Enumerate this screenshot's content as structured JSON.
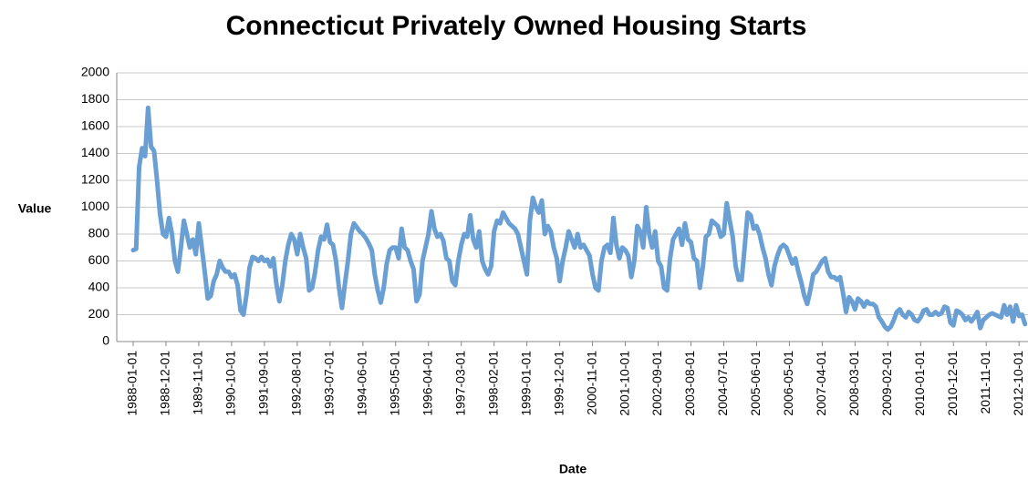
{
  "chart_data": {
    "type": "line",
    "title": "Connecticut Privately Owned Housing Starts",
    "x_label": "Date",
    "y_label": "Value",
    "color": "#6a9fd4",
    "grid": true,
    "ylim": [
      0,
      2000
    ],
    "yticks": [
      0,
      200,
      400,
      600,
      800,
      1000,
      1200,
      1400,
      1600,
      1800,
      2000
    ],
    "xticks": [
      "1988-01-01",
      "1988-12-01",
      "1989-11-01",
      "1990-10-01",
      "1991-09-01",
      "1992-08-01",
      "1993-07-01",
      "1994-06-01",
      "1995-05-01",
      "1996-04-01",
      "1997-03-01",
      "1998-02-01",
      "1999-01-01",
      "1999-12-01",
      "2000-11-01",
      "2001-10-01",
      "2002-09-01",
      "2003-08-01",
      "2004-07-01",
      "2005-06-01",
      "2006-05-01",
      "2007-04-01",
      "2008-03-01",
      "2009-02-01",
      "2010-01-01",
      "2010-12-01",
      "2011-11-01",
      "2012-10-01"
    ],
    "x": [
      "1988-01-01",
      "1988-02-01",
      "1988-03-01",
      "1988-04-01",
      "1988-05-01",
      "1988-06-01",
      "1988-07-01",
      "1988-08-01",
      "1988-09-01",
      "1988-10-01",
      "1988-11-01",
      "1988-12-01",
      "1989-01-01",
      "1989-02-01",
      "1989-03-01",
      "1989-04-01",
      "1989-05-01",
      "1989-06-01",
      "1989-07-01",
      "1989-08-01",
      "1989-09-01",
      "1989-10-01",
      "1989-11-01",
      "1989-12-01",
      "1990-01-01",
      "1990-02-01",
      "1990-03-01",
      "1990-04-01",
      "1990-05-01",
      "1990-06-01",
      "1990-07-01",
      "1990-08-01",
      "1990-09-01",
      "1990-10-01",
      "1990-11-01",
      "1990-12-01",
      "1991-01-01",
      "1991-02-01",
      "1991-03-01",
      "1991-04-01",
      "1991-05-01",
      "1991-06-01",
      "1991-07-01",
      "1991-08-01",
      "1991-09-01",
      "1991-10-01",
      "1991-11-01",
      "1991-12-01",
      "1992-01-01",
      "1992-02-01",
      "1992-03-01",
      "1992-04-01",
      "1992-05-01",
      "1992-06-01",
      "1992-07-01",
      "1992-08-01",
      "1992-09-01",
      "1992-10-01",
      "1992-11-01",
      "1992-12-01",
      "1993-01-01",
      "1993-02-01",
      "1993-03-01",
      "1993-04-01",
      "1993-05-01",
      "1993-06-01",
      "1993-07-01",
      "1993-08-01",
      "1993-09-01",
      "1993-10-01",
      "1993-11-01",
      "1993-12-01",
      "1994-01-01",
      "1994-02-01",
      "1994-03-01",
      "1994-04-01",
      "1994-05-01",
      "1994-06-01",
      "1994-07-01",
      "1994-08-01",
      "1994-09-01",
      "1994-10-01",
      "1994-11-01",
      "1994-12-01",
      "1995-01-01",
      "1995-02-01",
      "1995-03-01",
      "1995-04-01",
      "1995-05-01",
      "1995-06-01",
      "1995-07-01",
      "1995-08-01",
      "1995-09-01",
      "1995-10-01",
      "1995-11-01",
      "1995-12-01",
      "1996-01-01",
      "1996-02-01",
      "1996-03-01",
      "1996-04-01",
      "1996-05-01",
      "1996-06-01",
      "1996-07-01",
      "1996-08-01",
      "1996-09-01",
      "1996-10-01",
      "1996-11-01",
      "1996-12-01",
      "1997-01-01",
      "1997-02-01",
      "1997-03-01",
      "1997-04-01",
      "1997-05-01",
      "1997-06-01",
      "1997-07-01",
      "1997-08-01",
      "1997-09-01",
      "1997-10-01",
      "1997-11-01",
      "1997-12-01",
      "1998-01-01",
      "1998-02-01",
      "1998-03-01",
      "1998-04-01",
      "1998-05-01",
      "1998-06-01",
      "1998-07-01",
      "1998-08-01",
      "1998-09-01",
      "1998-10-01",
      "1998-11-01",
      "1998-12-01",
      "1999-01-01",
      "1999-02-01",
      "1999-03-01",
      "1999-04-01",
      "1999-05-01",
      "1999-06-01",
      "1999-07-01",
      "1999-08-01",
      "1999-09-01",
      "1999-10-01",
      "1999-11-01",
      "1999-12-01",
      "2000-01-01",
      "2000-02-01",
      "2000-03-01",
      "2000-04-01",
      "2000-05-01",
      "2000-06-01",
      "2000-07-01",
      "2000-08-01",
      "2000-09-01",
      "2000-10-01",
      "2000-11-01",
      "2000-12-01",
      "2001-01-01",
      "2001-02-01",
      "2001-03-01",
      "2001-04-01",
      "2001-05-01",
      "2001-06-01",
      "2001-07-01",
      "2001-08-01",
      "2001-09-01",
      "2001-10-01",
      "2001-11-01",
      "2001-12-01",
      "2002-01-01",
      "2002-02-01",
      "2002-03-01",
      "2002-04-01",
      "2002-05-01",
      "2002-06-01",
      "2002-07-01",
      "2002-08-01",
      "2002-09-01",
      "2002-10-01",
      "2002-11-01",
      "2002-12-01",
      "2003-01-01",
      "2003-02-01",
      "2003-03-01",
      "2003-04-01",
      "2003-05-01",
      "2003-06-01",
      "2003-07-01",
      "2003-08-01",
      "2003-09-01",
      "2003-10-01",
      "2003-11-01",
      "2003-12-01",
      "2004-01-01",
      "2004-02-01",
      "2004-03-01",
      "2004-04-01",
      "2004-05-01",
      "2004-06-01",
      "2004-07-01",
      "2004-08-01",
      "2004-09-01",
      "2004-10-01",
      "2004-11-01",
      "2004-12-01",
      "2005-01-01",
      "2005-02-01",
      "2005-03-01",
      "2005-04-01",
      "2005-05-01",
      "2005-06-01",
      "2005-07-01",
      "2005-08-01",
      "2005-09-01",
      "2005-10-01",
      "2005-11-01",
      "2005-12-01",
      "2006-01-01",
      "2006-02-01",
      "2006-03-01",
      "2006-04-01",
      "2006-05-01",
      "2006-06-01",
      "2006-07-01",
      "2006-08-01",
      "2006-09-01",
      "2006-10-01",
      "2006-11-01",
      "2006-12-01",
      "2007-01-01",
      "2007-02-01",
      "2007-03-01",
      "2007-04-01",
      "2007-05-01",
      "2007-06-01",
      "2007-07-01",
      "2007-08-01",
      "2007-09-01",
      "2007-10-01",
      "2007-11-01",
      "2007-12-01",
      "2008-01-01",
      "2008-02-01",
      "2008-03-01",
      "2008-04-01",
      "2008-05-01",
      "2008-06-01",
      "2008-07-01",
      "2008-08-01",
      "2008-09-01",
      "2008-10-01",
      "2008-11-01",
      "2008-12-01",
      "2009-01-01",
      "2009-02-01",
      "2009-03-01",
      "2009-04-01",
      "2009-05-01",
      "2009-06-01",
      "2009-07-01",
      "2009-08-01",
      "2009-09-01",
      "2009-10-01",
      "2009-11-01",
      "2009-12-01",
      "2010-01-01",
      "2010-02-01",
      "2010-03-01",
      "2010-04-01",
      "2010-05-01",
      "2010-06-01",
      "2010-07-01",
      "2010-08-01",
      "2010-09-01",
      "2010-10-01",
      "2010-11-01",
      "2010-12-01",
      "2011-01-01",
      "2011-02-01",
      "2011-03-01",
      "2011-04-01",
      "2011-05-01",
      "2011-06-01",
      "2011-07-01",
      "2011-08-01",
      "2011-09-01",
      "2011-10-01",
      "2011-11-01",
      "2011-12-01",
      "2012-01-01",
      "2012-02-01",
      "2012-03-01",
      "2012-04-01",
      "2012-05-01",
      "2012-06-01",
      "2012-07-01",
      "2012-08-01",
      "2012-09-01",
      "2012-10-01",
      "2012-11-01",
      "2012-12-01"
    ],
    "values": [
      680,
      690,
      1300,
      1440,
      1380,
      1740,
      1450,
      1420,
      1200,
      950,
      800,
      780,
      920,
      800,
      600,
      520,
      700,
      900,
      800,
      700,
      760,
      650,
      880,
      700,
      520,
      320,
      340,
      450,
      500,
      600,
      550,
      520,
      520,
      480,
      500,
      420,
      230,
      200,
      350,
      550,
      630,
      620,
      600,
      630,
      600,
      610,
      560,
      620,
      430,
      300,
      420,
      600,
      720,
      800,
      760,
      650,
      800,
      700,
      620,
      380,
      400,
      520,
      680,
      780,
      760,
      870,
      740,
      720,
      600,
      400,
      250,
      430,
      600,
      800,
      880,
      850,
      820,
      800,
      770,
      730,
      680,
      500,
      380,
      290,
      400,
      580,
      680,
      700,
      700,
      620,
      840,
      700,
      680,
      600,
      540,
      300,
      350,
      600,
      700,
      800,
      970,
      840,
      780,
      800,
      750,
      620,
      600,
      450,
      420,
      600,
      720,
      800,
      780,
      940,
      760,
      700,
      820,
      600,
      540,
      500,
      560,
      820,
      900,
      880,
      960,
      920,
      880,
      860,
      840,
      800,
      700,
      600,
      500,
      900,
      1070,
      1000,
      960,
      1050,
      800,
      860,
      820,
      700,
      620,
      450,
      600,
      700,
      820,
      760,
      700,
      800,
      700,
      720,
      680,
      640,
      500,
      400,
      380,
      600,
      700,
      720,
      660,
      920,
      720,
      620,
      700,
      680,
      640,
      480,
      600,
      860,
      820,
      700,
      1000,
      800,
      700,
      820,
      600,
      560,
      400,
      380,
      620,
      760,
      800,
      840,
      720,
      880,
      760,
      740,
      620,
      600,
      400,
      560,
      780,
      800,
      900,
      880,
      860,
      780,
      800,
      1030,
      900,
      780,
      560,
      460,
      460,
      700,
      960,
      940,
      840,
      860,
      800,
      700,
      620,
      500,
      420,
      560,
      640,
      700,
      720,
      700,
      640,
      580,
      620,
      520,
      440,
      340,
      280,
      380,
      500,
      520,
      560,
      600,
      620,
      520,
      480,
      480,
      460,
      480,
      360,
      220,
      330,
      300,
      240,
      320,
      300,
      260,
      300,
      280,
      280,
      260,
      180,
      150,
      110,
      90,
      110,
      160,
      220,
      240,
      200,
      180,
      220,
      200,
      160,
      150,
      180,
      230,
      240,
      200,
      200,
      220,
      200,
      210,
      260,
      250,
      140,
      120,
      230,
      220,
      200,
      160,
      180,
      150,
      180,
      220,
      100,
      160,
      180,
      200,
      210,
      200,
      190,
      180,
      270,
      200,
      260,
      150,
      270,
      190,
      200,
      130
    ]
  }
}
